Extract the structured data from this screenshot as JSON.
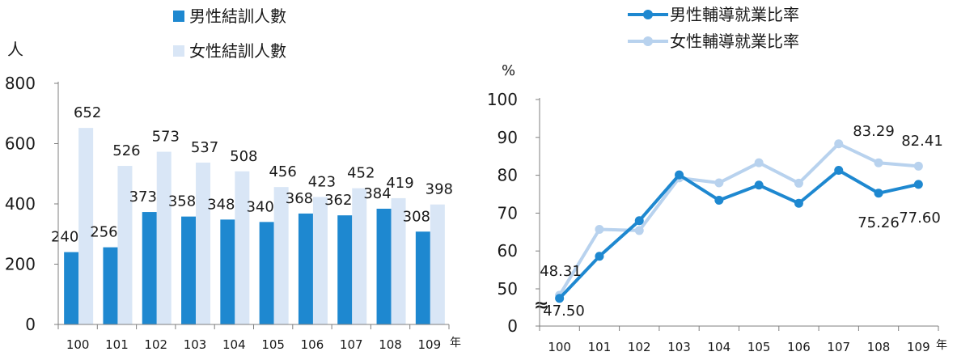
{
  "chart_data": [
    {
      "type": "bar",
      "categories": [
        "100",
        "101",
        "102",
        "103",
        "104",
        "105",
        "106",
        "107",
        "108",
        "109"
      ],
      "series": [
        {
          "name": "男性結訓人數",
          "values": [
            240,
            256,
            373,
            358,
            348,
            340,
            368,
            362,
            384,
            308
          ],
          "color": "#1e88d0"
        },
        {
          "name": "女性結訓人數",
          "values": [
            652,
            526,
            573,
            537,
            508,
            456,
            423,
            452,
            419,
            398
          ],
          "color": "#d9e6f6"
        }
      ],
      "ylabel": "人",
      "xlabel": "年",
      "ylim": [
        0,
        800
      ],
      "yticks": [
        0,
        200,
        400,
        600,
        800
      ],
      "grid": false,
      "legend": "top"
    },
    {
      "type": "line",
      "categories": [
        "100",
        "101",
        "102",
        "103",
        "104",
        "105",
        "106",
        "107",
        "108",
        "109"
      ],
      "series": [
        {
          "name": "男性輔導就業比率",
          "values": [
            47.5,
            58.6,
            68.0,
            80.1,
            73.4,
            77.4,
            72.6,
            81.3,
            75.26,
            77.6
          ],
          "color": "#1e88d0",
          "data_labels": {
            "0": "47.50",
            "8": "75.26",
            "9": "77.60"
          }
        },
        {
          "name": "女性輔導就業比率",
          "values": [
            48.31,
            65.7,
            65.4,
            79.3,
            78.0,
            83.3,
            77.9,
            88.3,
            83.29,
            82.41
          ],
          "color": "#b8d2ee",
          "data_labels": {
            "0": "48.31",
            "8": "83.29",
            "9": "82.41"
          }
        }
      ],
      "ylabel": "%",
      "xlabel": "年",
      "ylim": [
        0,
        100
      ],
      "yticks": [
        0,
        50,
        60,
        70,
        80,
        90,
        100
      ],
      "axis_break": "≈",
      "grid": false,
      "legend": "top"
    }
  ]
}
